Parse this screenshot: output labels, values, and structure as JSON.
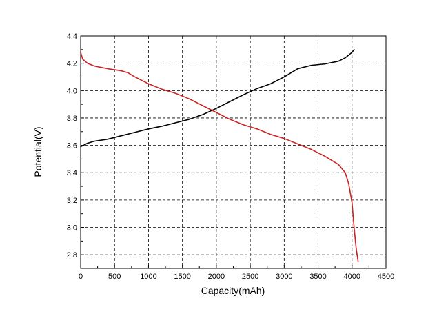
{
  "chart_data": {
    "type": "line",
    "title": "",
    "xlabel": "Capacity(mAh)",
    "ylabel": "Potential(V)",
    "xlim": [
      0,
      4500
    ],
    "ylim": [
      2.7,
      4.4
    ],
    "x_ticks": [
      "0",
      "500",
      "1000",
      "1500",
      "2000",
      "2500",
      "3000",
      "3500",
      "4000",
      "4500"
    ],
    "y_ticks": [
      "2.8",
      "3.0",
      "3.2",
      "3.4",
      "3.6",
      "3.8",
      "4.0",
      "4.2",
      "4.4"
    ],
    "grid": true,
    "legend": "none",
    "series": [
      {
        "color": "#000000",
        "x": [
          0,
          100,
          200,
          400,
          600,
          800,
          1000,
          1200,
          1400,
          1600,
          1800,
          2000,
          2200,
          2400,
          2600,
          2800,
          3000,
          3200,
          3400,
          3600,
          3800,
          3900,
          4000,
          4030
        ],
        "y": [
          3.59,
          3.615,
          3.63,
          3.645,
          3.67,
          3.695,
          3.72,
          3.74,
          3.765,
          3.79,
          3.825,
          3.87,
          3.92,
          3.97,
          4.015,
          4.05,
          4.1,
          4.16,
          4.185,
          4.195,
          4.215,
          4.24,
          4.28,
          4.3
        ]
      },
      {
        "color": "#cc2222",
        "x": [
          0,
          30,
          100,
          200,
          400,
          600,
          700,
          800,
          1000,
          1200,
          1400,
          1600,
          1800,
          2000,
          2200,
          2400,
          2600,
          2800,
          3000,
          3200,
          3400,
          3600,
          3800,
          3900,
          3950,
          4000,
          4030,
          4060,
          4090
        ],
        "y": [
          4.28,
          4.23,
          4.2,
          4.18,
          4.16,
          4.145,
          4.13,
          4.1,
          4.05,
          4.01,
          3.98,
          3.94,
          3.89,
          3.84,
          3.79,
          3.75,
          3.72,
          3.68,
          3.65,
          3.61,
          3.57,
          3.52,
          3.46,
          3.4,
          3.32,
          3.18,
          3.0,
          2.85,
          2.75
        ]
      }
    ]
  }
}
